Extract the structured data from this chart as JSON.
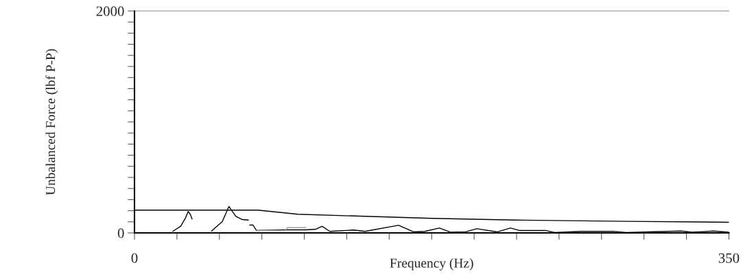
{
  "chart_data": {
    "type": "line",
    "xlabel": "Frequency (Hz)",
    "ylabel": "Unbalanced Force (lbf P-P)",
    "xlim": [
      0,
      350
    ],
    "ylim": [
      0,
      2000
    ],
    "xticks": [
      {
        "value": 0,
        "label": "0"
      },
      {
        "value": 25,
        "label": null
      },
      {
        "value": 50,
        "label": null
      },
      {
        "value": 75,
        "label": null
      },
      {
        "value": 100,
        "label": null
      },
      {
        "value": 125,
        "label": null
      },
      {
        "value": 150,
        "label": null
      },
      {
        "value": 175,
        "label": null
      },
      {
        "value": 200,
        "label": null
      },
      {
        "value": 225,
        "label": null
      },
      {
        "value": 250,
        "label": null
      },
      {
        "value": 275,
        "label": null
      },
      {
        "value": 300,
        "label": null
      },
      {
        "value": 325,
        "label": null
      },
      {
        "value": 350,
        "label": "350"
      }
    ],
    "yticks": [
      {
        "value": 0,
        "label": "0"
      },
      {
        "value": 100,
        "label": null
      },
      {
        "value": 200,
        "label": null
      },
      {
        "value": 300,
        "label": null
      },
      {
        "value": 400,
        "label": null
      },
      {
        "value": 500,
        "label": null
      },
      {
        "value": 600,
        "label": null
      },
      {
        "value": 700,
        "label": null
      },
      {
        "value": 800,
        "label": null
      },
      {
        "value": 900,
        "label": null
      },
      {
        "value": 1000,
        "label": null
      },
      {
        "value": 1100,
        "label": null
      },
      {
        "value": 1200,
        "label": null
      },
      {
        "value": 1300,
        "label": null
      },
      {
        "value": 1400,
        "label": null
      },
      {
        "value": 1500,
        "label": null
      },
      {
        "value": 1600,
        "label": null
      },
      {
        "value": 1700,
        "label": null
      },
      {
        "value": 1800,
        "label": null
      },
      {
        "value": 1900,
        "label": null
      },
      {
        "value": 2000,
        "label": "2000"
      }
    ],
    "grid": false,
    "legend": false,
    "marker": "none",
    "line_style": "solid",
    "series": [
      {
        "color": "#000000",
        "x": [
          0,
          72.6,
          96.3,
          175,
          224,
          290,
          350
        ],
        "values": [
          205,
          205,
          168,
          131,
          116,
          104,
          96
        ]
      },
      {
        "color": "#000000",
        "x": [
          22.5,
          27.2,
          30,
          31.6,
          32.8,
          33.9
        ],
        "values": [
          14,
          59,
          133,
          193,
          170,
          125
        ]
      },
      {
        "color": "#000000",
        "x": [
          45.4,
          51.7,
          55.6,
          59.6,
          63.5,
          67.1
        ],
        "values": [
          17,
          102,
          238,
          151,
          120,
          116
        ]
      },
      {
        "color": "#000000",
        "x": [
          67.9,
          69.8,
          71.8,
          89.6,
          101,
          106.5,
          110.5,
          115,
          129,
          135.7,
          155.5,
          164.5,
          171,
          179.5,
          186,
          195,
          201.6,
          213.5,
          221.4,
          226.5,
          242,
          247.4,
          263,
          281.7,
          289.6,
          302.7,
          322,
          328,
          341,
          350
        ],
        "values": [
          71,
          71,
          22,
          28,
          28,
          32,
          59,
          14,
          26,
          14,
          69,
          9,
          14,
          44,
          7,
          10,
          38,
          9,
          44,
          22,
          22,
          3,
          14,
          15,
          3,
          9,
          17,
          6,
          17,
          6
        ]
      },
      {
        "color": "#a0a0a0",
        "x": [
          72,
          89,
          90,
          101
        ],
        "values": [
          22,
          22,
          48,
          48
        ]
      }
    ]
  }
}
